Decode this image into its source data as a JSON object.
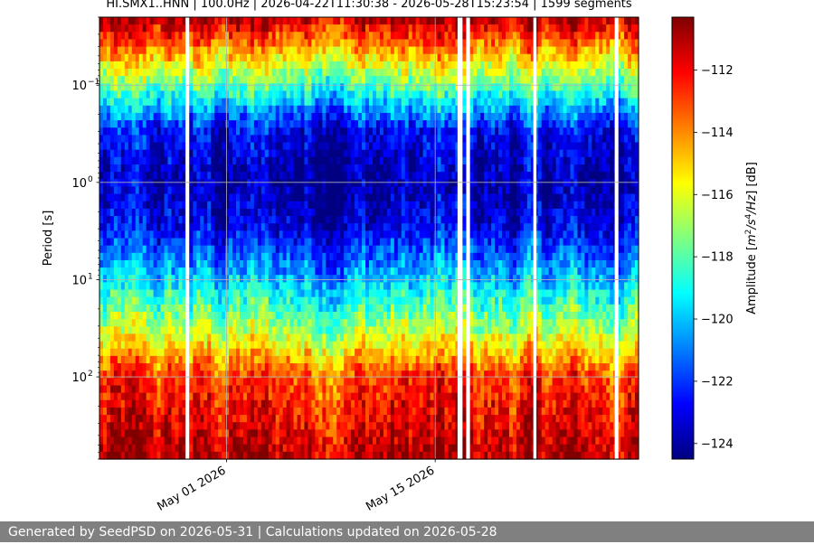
{
  "chart_data": {
    "type": "heatmap",
    "title": "HI.SMX1..HNN | 100.0Hz | 2026-04-22T11:30:38 - 2026-05-28T15:23:54 | 1599 segments",
    "ylabel": "Period [s]",
    "yscale": "log",
    "y_axis_direction": "inverted",
    "ylim": [
      0.02,
      700
    ],
    "y_ticks": [
      {
        "value": 0.1,
        "base": "10",
        "exp": "−1"
      },
      {
        "value": 1,
        "base": "10",
        "exp": "0"
      },
      {
        "value": 10,
        "base": "10",
        "exp": "1"
      },
      {
        "value": 100,
        "base": "10",
        "exp": "2"
      }
    ],
    "xlim": [
      "2026-04-22T11:30:38",
      "2026-05-28T15:23:54"
    ],
    "x_ticks": [
      {
        "value": "2026-05-01",
        "label": "May 01 2026"
      },
      {
        "value": "2026-05-15",
        "label": "May 15 2026"
      }
    ],
    "grid": true,
    "colorbar": {
      "label_parts": [
        "Amplitude [",
        "m",
        "2",
        "/s",
        "4",
        "/Hz",
        "] [dB]"
      ],
      "colormap": "jet",
      "range": [
        -124.5,
        -110.3
      ],
      "ticks": [
        -112,
        -114,
        -116,
        -118,
        -120,
        -122,
        -124
      ],
      "tick_labels": [
        "−112",
        "−114",
        "−116",
        "−118",
        "−120",
        "−122",
        "−124"
      ]
    },
    "data_gaps": [
      [
        "2026-04-28T06:00:00",
        "2026-04-28T12:00:00"
      ],
      [
        "2026-05-16T12:00:00",
        "2026-05-16T20:00:00"
      ],
      [
        "2026-05-17T02:00:00",
        "2026-05-17T08:00:00"
      ],
      [
        "2026-05-21T14:00:00",
        "2026-05-21T19:00:00"
      ],
      [
        "2026-05-27T01:00:00",
        "2026-05-27T07:00:00"
      ]
    ],
    "level_profile": [
      {
        "period": 0.02,
        "amplitude_db": -111
      },
      {
        "period": 0.05,
        "amplitude_db": -115
      },
      {
        "period": 0.1,
        "amplitude_db": -118
      },
      {
        "period": 0.3,
        "amplitude_db": -123
      },
      {
        "period": 1,
        "amplitude_db": -124
      },
      {
        "period": 3,
        "amplitude_db": -123
      },
      {
        "period": 10,
        "amplitude_db": -120
      },
      {
        "period": 30,
        "amplitude_db": -117
      },
      {
        "period": 100,
        "amplitude_db": -113
      },
      {
        "period": 700,
        "amplitude_db": -111
      }
    ]
  },
  "footer": {
    "text": "Generated by SeedPSD on 2026-05-31 | Calculations updated on 2026-05-28"
  }
}
